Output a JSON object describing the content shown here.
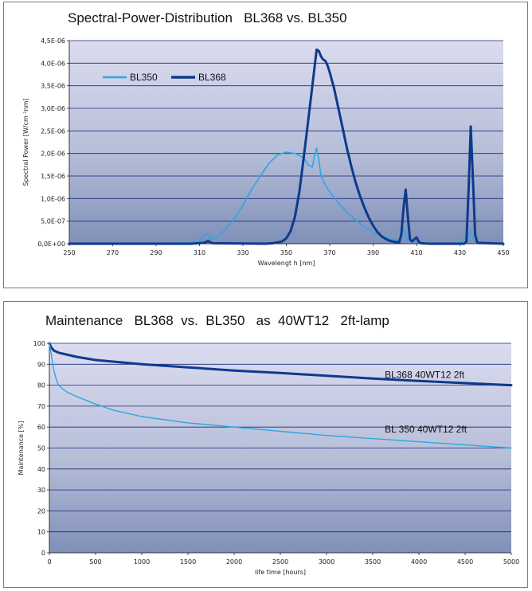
{
  "colors": {
    "bl350": "#2aa8e4",
    "bl368": "#0e3a8c",
    "grid": "#1a2a7a"
  },
  "chart_data": [
    {
      "type": "line",
      "title": "Spectral-Power-Distribution   BL368 vs. BL350",
      "xlabel": "Wavelengt h [nm]",
      "ylabel": "Spectral Power [W/cm ²nm]",
      "xlim": [
        250,
        450
      ],
      "ylim": [
        0,
        4.5e-06
      ],
      "x_ticks": [
        250,
        270,
        290,
        310,
        330,
        350,
        370,
        390,
        410,
        430,
        450
      ],
      "y_ticks": [
        {
          "v": 0,
          "label": "0,0E+00"
        },
        {
          "v": 5e-07,
          "label": "5,0E-07"
        },
        {
          "v": 1e-06,
          "label": "1,0E-06"
        },
        {
          "v": 1.5e-06,
          "label": "1,5E-06"
        },
        {
          "v": 2e-06,
          "label": "2,0E-06"
        },
        {
          "v": 2.5e-06,
          "label": "2,5E-06"
        },
        {
          "v": 3e-06,
          "label": "3,0E-06"
        },
        {
          "v": 3.5e-06,
          "label": "3,5E-06"
        },
        {
          "v": 4e-06,
          "label": "4,0E-06"
        },
        {
          "v": 4.5e-06,
          "label": "4,5E-06"
        }
      ],
      "grid": true,
      "legend_position": "top-left",
      "series": [
        {
          "name": "BL350",
          "x": [
            250,
            300,
            308,
            311,
            313,
            314,
            315,
            318,
            322,
            326,
            330,
            334,
            338,
            342,
            346,
            350,
            354,
            358,
            360,
            362,
            363,
            364,
            365,
            366,
            368,
            370,
            374,
            378,
            382,
            386,
            390,
            394,
            398,
            402,
            403,
            404,
            405,
            406,
            407,
            409,
            410,
            412,
            416,
            430,
            434,
            435,
            436,
            437,
            438,
            450
          ],
          "y": [
            0,
            0,
            3e-08,
            1e-07,
            2.2e-07,
            1.8e-07,
            9e-08,
            1.5e-07,
            3.2e-07,
            5.5e-07,
            8.5e-07,
            1.2e-06,
            1.5e-06,
            1.78e-06,
            1.97e-06,
            2.03e-06,
            2e-06,
            1.9e-06,
            1.75e-06,
            1.7e-06,
            1.95e-06,
            2.12e-06,
            1.85e-06,
            1.5e-06,
            1.3e-06,
            1.15e-06,
            9e-07,
            7e-07,
            5.2e-07,
            3.8e-07,
            2.6e-07,
            1.7e-07,
            1.1e-07,
            7e-08,
            2.2e-07,
            3.5e-07,
            2e-07,
            6e-08,
            5e-08,
            6e-08,
            4e-08,
            2e-08,
            0,
            0,
            2e-07,
            3e-07,
            1e-07,
            2e-08,
            0,
            0
          ]
        },
        {
          "name": "BL368",
          "x": [
            250,
            306,
            312,
            314,
            316,
            340,
            344,
            348,
            350,
            352,
            354,
            356,
            358,
            360,
            362,
            363,
            364,
            365,
            366,
            367,
            368,
            369,
            370,
            372,
            374,
            376,
            378,
            380,
            382,
            384,
            386,
            388,
            390,
            392,
            394,
            396,
            398,
            400,
            402,
            403,
            404,
            405,
            406,
            407,
            408,
            409,
            410,
            411,
            412,
            416,
            432,
            433,
            434,
            435,
            436,
            437,
            438,
            450
          ],
          "y": [
            0,
            0,
            2e-08,
            6e-08,
            1e-08,
            0,
            1e-08,
            5e-08,
            1.2e-07,
            2.8e-07,
            6e-07,
            1.15e-06,
            1.9e-06,
            2.7e-06,
            3.5e-06,
            3.9e-06,
            4.3e-06,
            4.27e-06,
            4.15e-06,
            4.08e-06,
            4.05e-06,
            3.95e-06,
            3.8e-06,
            3.45e-06,
            3e-06,
            2.55e-06,
            2.1e-06,
            1.7e-06,
            1.35e-06,
            1.05e-06,
            8e-07,
            5.8e-07,
            4e-07,
            2.6e-07,
            1.6e-07,
            1e-07,
            6e-08,
            4e-08,
            3e-08,
            2e-07,
            8e-07,
            1.2e-06,
            6e-07,
            1e-07,
            5e-08,
            1e-07,
            1.4e-07,
            5e-08,
            1e-08,
            0,
            0,
            5e-08,
            1.2e-06,
            2.6e-06,
            1.4e-06,
            2e-07,
            2e-08,
            0
          ]
        }
      ]
    },
    {
      "type": "line",
      "title": "Maintenance   BL368  vs.  BL350   as  40WT12   2ft-lamp",
      "xlabel": "life time [hours]",
      "ylabel": "Maintenance [%]",
      "xlim": [
        0,
        5000
      ],
      "ylim": [
        0,
        100
      ],
      "x_ticks": [
        0,
        500,
        1000,
        1500,
        2000,
        2500,
        3000,
        3500,
        4000,
        4500,
        5000
      ],
      "y_ticks": [
        0,
        10,
        20,
        30,
        40,
        50,
        60,
        70,
        80,
        90,
        100
      ],
      "grid": true,
      "series": [
        {
          "name": "BL368 40WT12 2ft",
          "x": [
            0,
            20,
            50,
            100,
            200,
            300,
            500,
            1000,
            1500,
            2000,
            2500,
            3000,
            3500,
            4000,
            4500,
            5000
          ],
          "y": [
            100,
            98,
            96.5,
            95.5,
            94.5,
            93.5,
            92,
            90,
            88.5,
            87,
            85.8,
            84.5,
            83.2,
            82,
            81,
            80
          ]
        },
        {
          "name": "BL 350 40WT12 2ft",
          "x": [
            0,
            20,
            40,
            60,
            80,
            100,
            150,
            200,
            300,
            500,
            700,
            1000,
            1500,
            2000,
            2500,
            3000,
            3500,
            4000,
            4500,
            5000
          ],
          "y": [
            100,
            95,
            89,
            85,
            82,
            80,
            78,
            76.5,
            74.5,
            71,
            68,
            65,
            62,
            60,
            58,
            56,
            54.5,
            53,
            51.5,
            50
          ]
        }
      ]
    }
  ]
}
